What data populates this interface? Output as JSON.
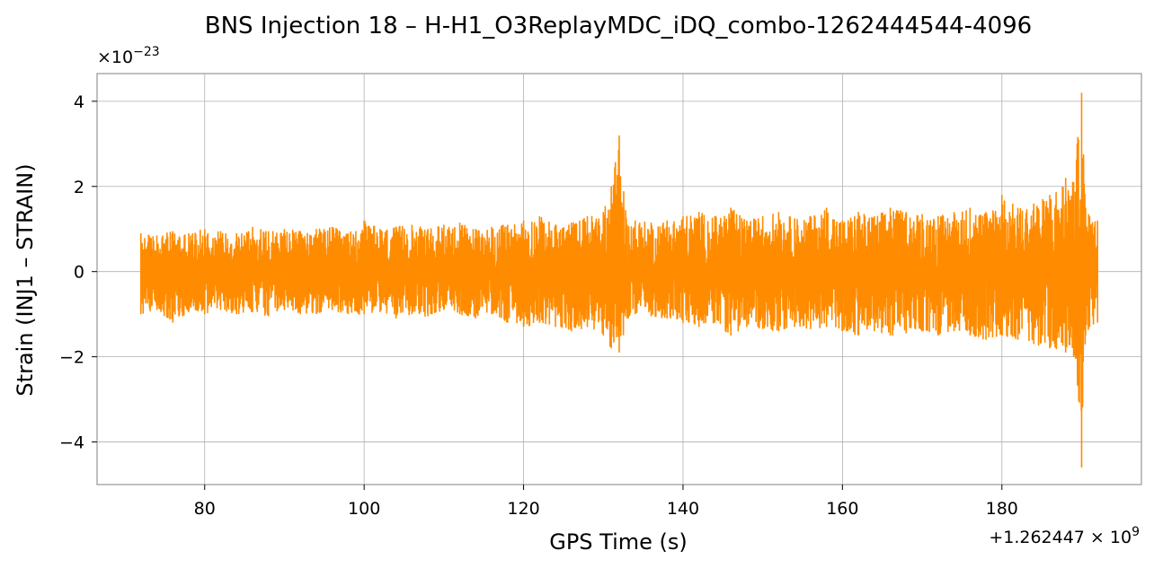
{
  "chart_data": {
    "type": "line",
    "title": "BNS Injection 18 – H-H1_O3ReplayMDC_iDQ_combo-1262444544-4096",
    "xlabel": "GPS Time (s)",
    "ylabel": "Strain (INJ1 – STRAIN)",
    "x_offset_label": "+1.262447 × 10",
    "x_offset_exponent": "9",
    "y_multiplier_label": "×10",
    "y_multiplier_exponent": "−23",
    "xlim": [
      66.5,
      197.5
    ],
    "ylim": [
      -5.0,
      4.65
    ],
    "grid": true,
    "x_ticks": [
      {
        "value": 80,
        "label": "80"
      },
      {
        "value": 100,
        "label": "100"
      },
      {
        "value": 120,
        "label": "120"
      },
      {
        "value": 140,
        "label": "140"
      },
      {
        "value": 160,
        "label": "160"
      },
      {
        "value": 180,
        "label": "180"
      }
    ],
    "y_ticks": [
      {
        "value": -4,
        "label": "−4"
      },
      {
        "value": -2,
        "label": "−2"
      },
      {
        "value": 0,
        "label": "0"
      },
      {
        "value": 2,
        "label": "2"
      },
      {
        "value": 4,
        "label": "4"
      }
    ],
    "series": [
      {
        "color": "#ff8c00",
        "envelope_x": [
          72.0,
          74,
          76,
          78,
          80,
          82,
          84,
          86,
          88,
          90,
          92,
          94,
          96,
          98,
          100,
          102,
          104,
          106,
          108,
          110,
          112,
          114,
          116,
          118,
          120,
          122,
          124,
          126,
          128,
          130,
          131,
          132,
          133,
          134,
          136,
          138,
          140,
          142,
          144,
          146,
          148,
          150,
          152,
          154,
          156,
          158,
          160,
          162,
          164,
          166,
          168,
          170,
          172,
          174,
          176,
          178,
          180,
          182,
          184,
          186,
          188,
          189,
          190,
          190.5,
          191,
          192
        ],
        "envelope_upper": [
          0.9,
          0.85,
          0.95,
          0.9,
          1.0,
          0.95,
          0.9,
          1.05,
          0.95,
          1.0,
          0.95,
          1.0,
          1.05,
          0.9,
          1.2,
          1.0,
          1.05,
          1.1,
          1.0,
          1.1,
          1.15,
          1.0,
          1.05,
          1.1,
          1.2,
          1.3,
          1.1,
          1.15,
          1.3,
          1.4,
          2.0,
          3.2,
          1.1,
          1.2,
          1.15,
          1.2,
          1.3,
          1.4,
          1.3,
          1.5,
          1.2,
          1.3,
          1.4,
          1.25,
          1.3,
          1.5,
          1.2,
          1.4,
          1.3,
          1.5,
          1.4,
          1.35,
          1.3,
          1.4,
          1.5,
          1.4,
          1.8,
          1.5,
          1.6,
          1.8,
          2.2,
          2.1,
          4.2,
          1.5,
          1.3,
          1.2
        ],
        "envelope_lower": [
          -1.0,
          -0.9,
          -1.2,
          -0.95,
          -1.0,
          -0.9,
          -1.0,
          -0.95,
          -1.05,
          -0.9,
          -1.0,
          -1.0,
          -0.9,
          -1.0,
          -1.0,
          -0.95,
          -1.1,
          -1.0,
          -1.05,
          -0.9,
          -1.0,
          -1.1,
          -1.0,
          -1.2,
          -1.3,
          -1.2,
          -1.3,
          -1.4,
          -1.3,
          -1.5,
          -1.8,
          -1.9,
          -1.1,
          -1.0,
          -1.05,
          -1.1,
          -1.2,
          -1.3,
          -1.2,
          -1.5,
          -1.3,
          -1.35,
          -1.4,
          -1.3,
          -1.35,
          -1.3,
          -1.4,
          -1.5,
          -1.4,
          -1.5,
          -1.45,
          -1.4,
          -1.5,
          -1.4,
          -1.5,
          -1.6,
          -1.5,
          -1.6,
          -1.7,
          -1.8,
          -1.9,
          -2.0,
          -4.6,
          -1.5,
          -1.3,
          -1.2
        ]
      }
    ]
  }
}
